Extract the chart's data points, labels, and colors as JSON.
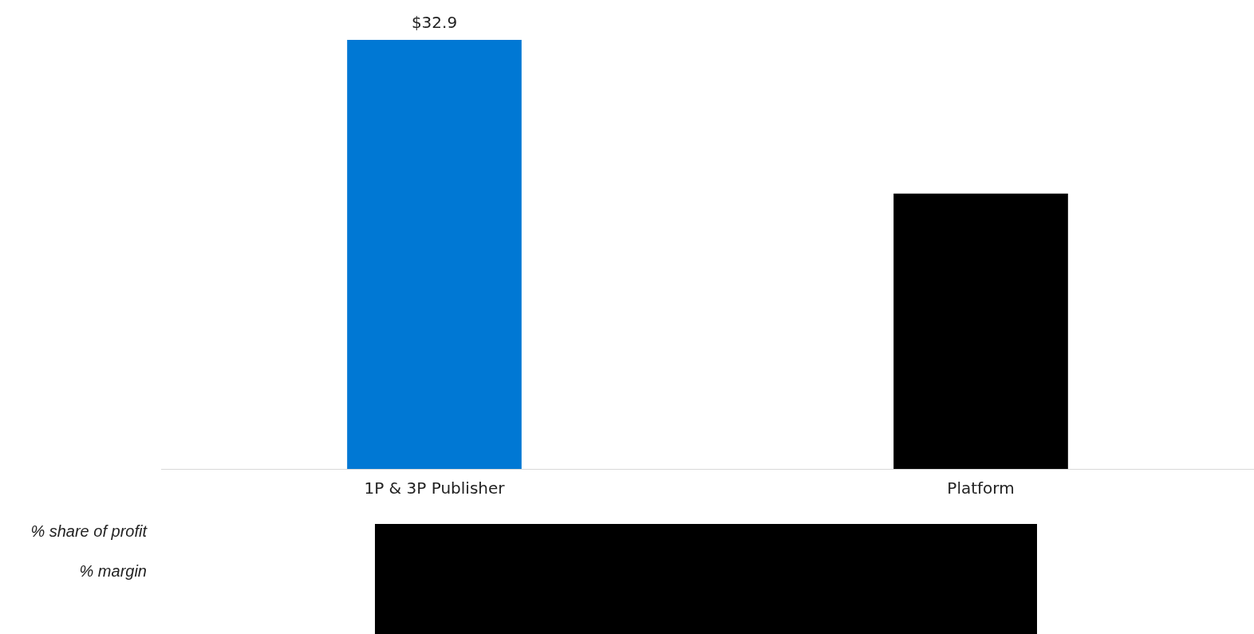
{
  "chart_data": {
    "type": "bar",
    "categories": [
      "1P & 3P Publisher",
      "Platform"
    ],
    "values": [
      32.9,
      21.1
    ],
    "ylim": [
      0,
      32.9
    ],
    "colors": [
      "#0078d4",
      "#000000"
    ],
    "value_labels": [
      "$32.9",
      null
    ],
    "grid": false,
    "legend": false,
    "annotations": [
      "% share of profit",
      "% margin"
    ]
  }
}
